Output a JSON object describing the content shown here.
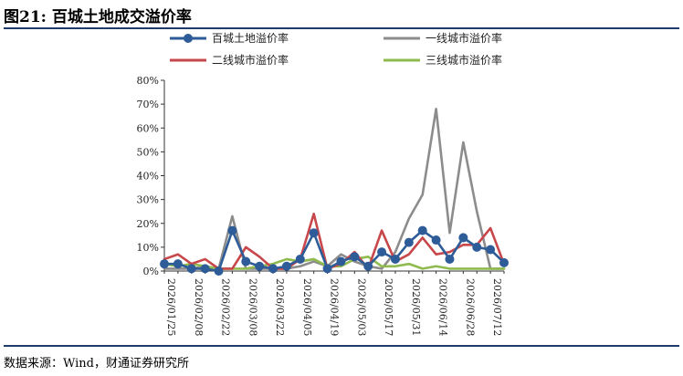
{
  "header": {
    "title": "图21: 百城土地成交溢价率"
  },
  "footer": {
    "source": "数据来源：Wind，财通证券研究所"
  },
  "chart_data": {
    "type": "line",
    "title": "",
    "xlabel": "",
    "ylabel": "",
    "ylim": [
      0,
      80
    ],
    "y_ticks": [
      "0%",
      "10%",
      "20%",
      "30%",
      "40%",
      "50%",
      "60%",
      "70%",
      "80%"
    ],
    "x_ticks": [
      "2026/01/25",
      "2026/02/08",
      "2026/02/22",
      "2026/03/08",
      "2026/03/22",
      "2026/04/05",
      "2026/04/19",
      "2026/05/03",
      "2026/05/17",
      "2026/05/31",
      "2026/06/14",
      "2026/06/28",
      "2026/07/12"
    ],
    "x": [
      "2026/01/25",
      "2026/02/01",
      "2026/02/08",
      "2026/02/15",
      "2026/02/22",
      "2026/03/01",
      "2026/03/08",
      "2026/03/15",
      "2026/03/22",
      "2026/03/29",
      "2026/04/05",
      "2026/04/12",
      "2026/04/19",
      "2026/04/26",
      "2026/05/03",
      "2026/05/10",
      "2026/05/17",
      "2026/05/24",
      "2026/05/31",
      "2026/06/07",
      "2026/06/14",
      "2026/06/21",
      "2026/06/28",
      "2026/07/05",
      "2026/07/12",
      "2026/07/19"
    ],
    "grid": false,
    "legend_position": "top",
    "series": [
      {
        "name": "百城土地溢价率",
        "color": "#2e5c98",
        "marker": true,
        "values": [
          3,
          3,
          1,
          1,
          0,
          17,
          4,
          2,
          1,
          2,
          5,
          16,
          1,
          4,
          6,
          2,
          8,
          5,
          12,
          17,
          13,
          5,
          14,
          10,
          9,
          3.5
        ]
      },
      {
        "name": "一线城市溢价率",
        "color": "#8c8c8c",
        "marker": false,
        "values": [
          1,
          1,
          1,
          2,
          1,
          23,
          1,
          1,
          1,
          1,
          2,
          4,
          2,
          7,
          4,
          2,
          1,
          8,
          22,
          32,
          68,
          16,
          54,
          25,
          1,
          1
        ]
      },
      {
        "name": "二线城市溢价率",
        "color": "#c8474b",
        "marker": false,
        "values": [
          5,
          7,
          3,
          5,
          1,
          1,
          10,
          6,
          1,
          1,
          5,
          24,
          1,
          3,
          8,
          1,
          17,
          4,
          7,
          14,
          7,
          8,
          11,
          11,
          18,
          3
        ]
      },
      {
        "name": "三线城市溢价率",
        "color": "#8fbb4e",
        "marker": false,
        "values": [
          3,
          2,
          3,
          2,
          1,
          1,
          1,
          2,
          3,
          5,
          4,
          5,
          2,
          2,
          5,
          6,
          2,
          2,
          3,
          1,
          2,
          1,
          1,
          1,
          1,
          1
        ]
      }
    ]
  }
}
